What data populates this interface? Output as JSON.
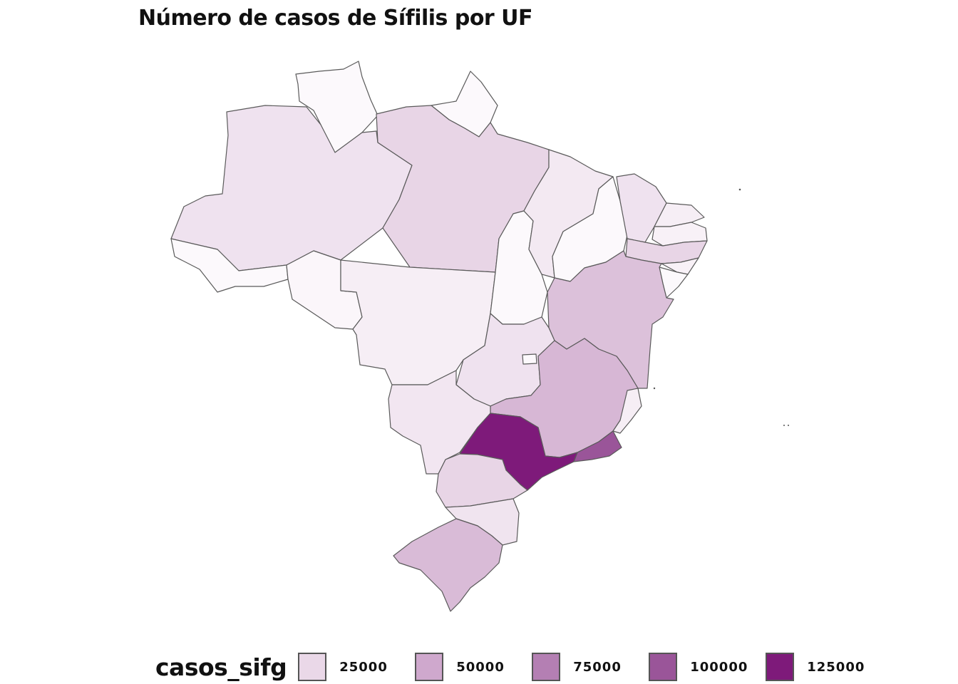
{
  "title": "Número de casos de Sífilis por UF",
  "legend": {
    "title": "casos_sifg",
    "items": [
      {
        "label": "25000",
        "color": "#ead8e8"
      },
      {
        "label": "50000",
        "color": "#cfa8cd"
      },
      {
        "label": "75000",
        "color": "#b47fb3"
      },
      {
        "label": "100000",
        "color": "#9a5599"
      },
      {
        "label": "125000",
        "color": "#7e1a7a"
      }
    ]
  },
  "states": [
    {
      "uf": "RR",
      "color": "#fcf9fc"
    },
    {
      "uf": "AP",
      "color": "#fcf9fc"
    },
    {
      "uf": "AM",
      "color": "#efe2ef"
    },
    {
      "uf": "PA",
      "color": "#e8d5e6"
    },
    {
      "uf": "AC",
      "color": "#fcf9fc"
    },
    {
      "uf": "RO",
      "color": "#fbf6fa"
    },
    {
      "uf": "MT",
      "color": "#f6eef5"
    },
    {
      "uf": "TO",
      "color": "#fcf9fc"
    },
    {
      "uf": "MA",
      "color": "#f3e9f2"
    },
    {
      "uf": "PI",
      "color": "#fcf9fc"
    },
    {
      "uf": "CE",
      "color": "#efe2ef"
    },
    {
      "uf": "RN",
      "color": "#f6eef5"
    },
    {
      "uf": "PB",
      "color": "#f8f1f7"
    },
    {
      "uf": "PE",
      "color": "#e8d5e6"
    },
    {
      "uf": "AL",
      "color": "#f8f1f7"
    },
    {
      "uf": "SE",
      "color": "#fcf9fc"
    },
    {
      "uf": "BA",
      "color": "#dcc1da"
    },
    {
      "uf": "GO",
      "color": "#efe2ef"
    },
    {
      "uf": "DF",
      "color": "#fcf9fc"
    },
    {
      "uf": "MG",
      "color": "#d7b7d5"
    },
    {
      "uf": "ES",
      "color": "#f6eef5"
    },
    {
      "uf": "MS",
      "color": "#f2e6f1"
    },
    {
      "uf": "RJ",
      "color": "#9a5599"
    },
    {
      "uf": "SP",
      "color": "#7e1a7a"
    },
    {
      "uf": "PR",
      "color": "#e8d5e6"
    },
    {
      "uf": "SC",
      "color": "#f0e4ef"
    },
    {
      "uf": "RS",
      "color": "#d9bbd7"
    }
  ]
}
